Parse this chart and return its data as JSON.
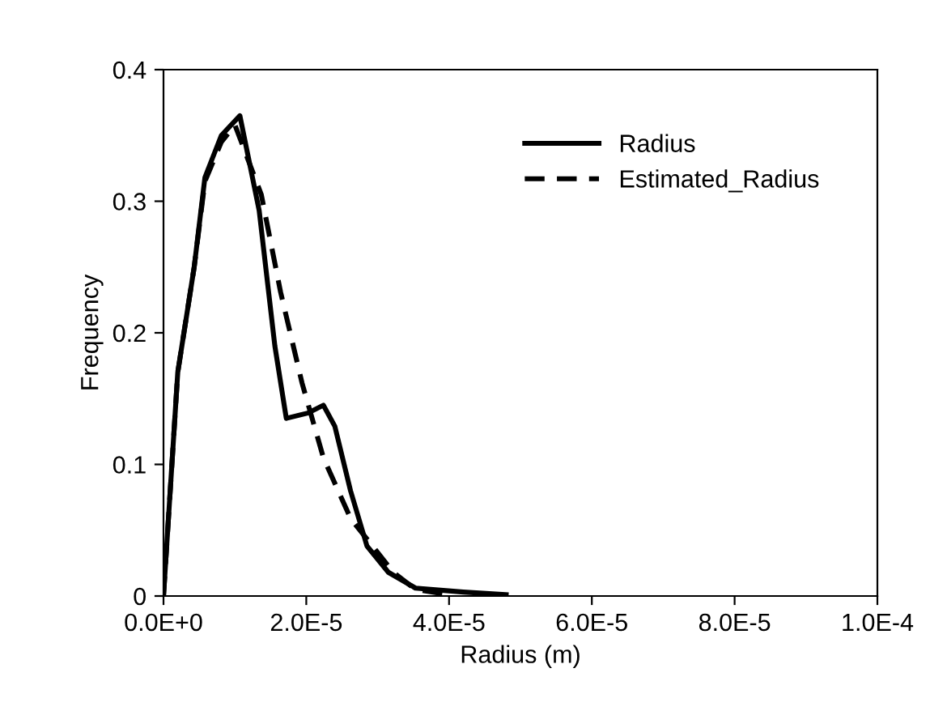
{
  "chart_data": {
    "type": "line",
    "xlabel": "Radius (m)",
    "ylabel": "Frequency",
    "series": [
      {
        "name": "Radius",
        "color": "#000000",
        "line_style": "solid",
        "x": [
          0,
          2e-06,
          4.3e-06,
          5.8e-06,
          8.1e-06,
          1.07e-05,
          1.34e-05,
          1.56e-05,
          1.72e-05,
          2.02e-05,
          2.24e-05,
          2.4e-05,
          2.62e-05,
          2.85e-05,
          3.15e-05,
          3.53e-05,
          4.2e-05,
          4.8e-05
        ],
        "values": [
          0,
          0.17,
          0.25,
          0.318,
          0.35,
          0.365,
          0.293,
          0.19,
          0.135,
          0.139,
          0.145,
          0.129,
          0.08,
          0.038,
          0.018,
          0.006,
          0.003,
          0.001
        ]
      },
      {
        "name": "Estimated_Radius",
        "color": "#000000",
        "line_style": "dashed",
        "x": [
          0,
          2e-06,
          4.3e-06,
          5.8e-06,
          8.1e-06,
          1e-05,
          1.37e-05,
          1.64e-05,
          1.94e-05,
          2.24e-05,
          2.62e-05,
          3.22e-05,
          3.53e-05,
          4e-05
        ],
        "values": [
          0,
          0.17,
          0.25,
          0.315,
          0.345,
          0.358,
          0.305,
          0.231,
          0.162,
          0.105,
          0.059,
          0.018,
          0.005,
          0.001
        ]
      }
    ],
    "xlim": [
      0,
      0.0001
    ],
    "xticks": [
      {
        "value": 0,
        "label": "0.0E+0"
      },
      {
        "value": 2e-05,
        "label": "2.0E-5"
      },
      {
        "value": 4e-05,
        "label": "4.0E-5"
      },
      {
        "value": 6e-05,
        "label": "6.0E-5"
      },
      {
        "value": 8e-05,
        "label": "8.0E-5"
      },
      {
        "value": 0.0001,
        "label": "1.0E-4"
      }
    ],
    "ylim": [
      0,
      0.4
    ],
    "yticks": [
      {
        "value": 0,
        "label": "0"
      },
      {
        "value": 0.1,
        "label": "0.1"
      },
      {
        "value": 0.2,
        "label": "0.2"
      },
      {
        "value": 0.3,
        "label": "0.3"
      },
      {
        "value": 0.4,
        "label": "0.4"
      }
    ],
    "grid": false,
    "legend": "top right"
  }
}
